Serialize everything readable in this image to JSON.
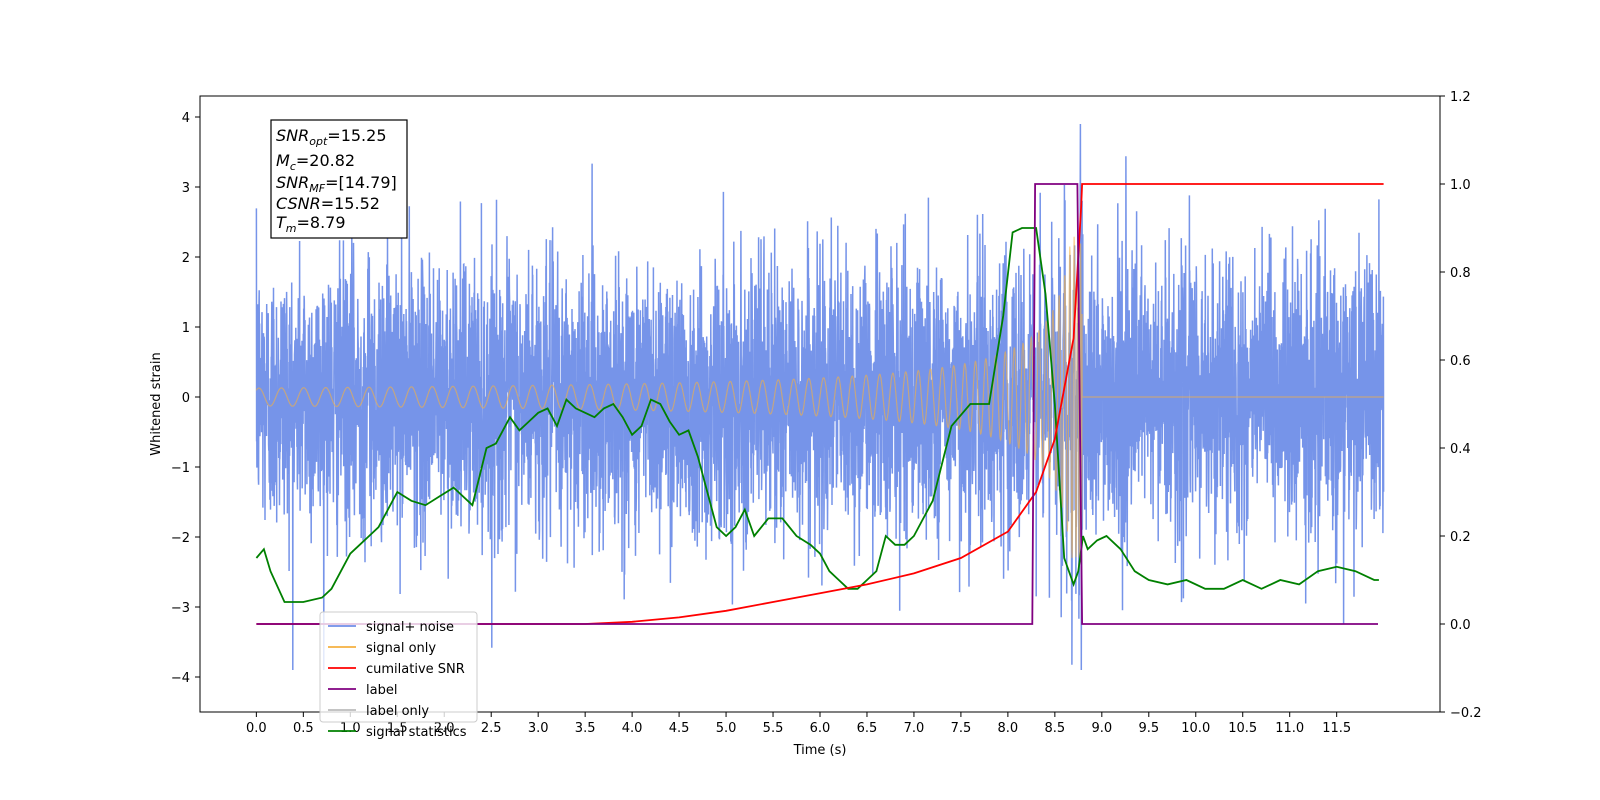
{
  "chart_data": {
    "type": "line",
    "xlabel": "Time (s)",
    "ylabel_left": "Whitened strain",
    "ylabel_right": "",
    "xlim": [
      -0.6,
      12.6
    ],
    "ylim_left": [
      -4.5,
      4.3
    ],
    "ylim_right": [
      -0.2,
      1.2
    ],
    "x_ticks": [
      "0.0",
      "0.5",
      "1.0",
      "1.5",
      "2.0",
      "2.5",
      "3.0",
      "3.5",
      "4.0",
      "4.5",
      "5.0",
      "5.5",
      "6.0",
      "6.5",
      "7.0",
      "7.5",
      "8.0",
      "8.5",
      "9.0",
      "9.5",
      "10.0",
      "10.5",
      "11.0",
      "11.5"
    ],
    "y_ticks_left": [
      "4",
      "3",
      "2",
      "1",
      "0",
      "−1",
      "−2",
      "−3",
      "−4"
    ],
    "y_ticks_right": [
      "1.2",
      "1.0",
      "0.8",
      "0.6",
      "0.4",
      "0.2",
      "0.0",
      "−0.2"
    ],
    "grid": false,
    "legend_position": "lower-left",
    "annotation": {
      "snr_opt": "=15.25",
      "mc": "=20.82",
      "snr_mf": "=[14.79]",
      "csnr": "=15.52",
      "tm": "=8.79"
    },
    "series": [
      {
        "name": "signal+ noise",
        "color": "#6f8ee8",
        "axis": "left",
        "description": "white noise, std ~1, peaks to about 3.9 near t=8.79",
        "x_range": [
          0.0,
          12.0
        ]
      },
      {
        "name": "signal only",
        "color": "#f5b041",
        "axis": "left",
        "description": "chirp waveform growing from 0 to amplitude ~2.3 at merger t=8.79",
        "x_range": [
          0.0,
          12.0
        ]
      },
      {
        "name": "cumilative SNR",
        "color": "#ff0000",
        "axis": "right",
        "x": [
          0.0,
          3.5,
          4.0,
          4.5,
          5.0,
          5.5,
          6.0,
          6.5,
          7.0,
          7.5,
          8.0,
          8.3,
          8.5,
          8.7,
          8.78,
          8.79,
          12.0
        ],
        "y": [
          0.0,
          0.0,
          0.005,
          0.015,
          0.03,
          0.05,
          0.07,
          0.09,
          0.115,
          0.15,
          0.21,
          0.3,
          0.42,
          0.65,
          0.95,
          1.0,
          1.0
        ]
      },
      {
        "name": "label",
        "color": "#800080",
        "axis": "right",
        "x": [
          0.0,
          8.26,
          8.29,
          8.74,
          8.79,
          11.94
        ],
        "y": [
          0.0,
          0.0,
          1.0,
          1.0,
          0.0,
          0.0
        ]
      },
      {
        "name": "label only",
        "color": "#bbbbbb",
        "axis": "right",
        "x": [],
        "y": []
      },
      {
        "name": "signal statistics",
        "color": "#008000",
        "axis": "right",
        "x": [
          0.0,
          0.08,
          0.15,
          0.3,
          0.5,
          0.7,
          0.8,
          0.9,
          1.0,
          1.1,
          1.2,
          1.3,
          1.5,
          1.65,
          1.8,
          1.95,
          2.1,
          2.3,
          2.45,
          2.55,
          2.7,
          2.8,
          2.9,
          3.0,
          3.1,
          3.2,
          3.3,
          3.4,
          3.5,
          3.6,
          3.7,
          3.8,
          3.9,
          4.0,
          4.1,
          4.2,
          4.3,
          4.4,
          4.5,
          4.6,
          4.7,
          4.8,
          4.9,
          5.0,
          5.1,
          5.2,
          5.3,
          5.45,
          5.6,
          5.75,
          5.9,
          6.0,
          6.1,
          6.2,
          6.3,
          6.4,
          6.5,
          6.6,
          6.7,
          6.8,
          6.9,
          7.0,
          7.2,
          7.4,
          7.6,
          7.8,
          7.95,
          8.05,
          8.15,
          8.3,
          8.4,
          8.5,
          8.6,
          8.7,
          8.75,
          8.8,
          8.85,
          8.95,
          9.05,
          9.2,
          9.35,
          9.5,
          9.7,
          9.9,
          10.1,
          10.3,
          10.5,
          10.7,
          10.9,
          11.1,
          11.3,
          11.5,
          11.7,
          11.9,
          11.95
        ],
        "y": [
          0.15,
          0.17,
          0.12,
          0.05,
          0.05,
          0.06,
          0.08,
          0.12,
          0.16,
          0.18,
          0.2,
          0.22,
          0.3,
          0.28,
          0.27,
          0.29,
          0.31,
          0.27,
          0.4,
          0.41,
          0.47,
          0.44,
          0.46,
          0.48,
          0.49,
          0.45,
          0.51,
          0.49,
          0.48,
          0.47,
          0.49,
          0.5,
          0.47,
          0.43,
          0.45,
          0.51,
          0.5,
          0.46,
          0.43,
          0.44,
          0.38,
          0.3,
          0.22,
          0.2,
          0.22,
          0.26,
          0.2,
          0.24,
          0.24,
          0.2,
          0.18,
          0.16,
          0.12,
          0.1,
          0.08,
          0.08,
          0.1,
          0.12,
          0.2,
          0.18,
          0.18,
          0.2,
          0.28,
          0.45,
          0.5,
          0.5,
          0.7,
          0.89,
          0.9,
          0.9,
          0.75,
          0.5,
          0.15,
          0.09,
          0.12,
          0.2,
          0.17,
          0.19,
          0.2,
          0.17,
          0.12,
          0.1,
          0.09,
          0.1,
          0.08,
          0.08,
          0.1,
          0.08,
          0.1,
          0.09,
          0.12,
          0.13,
          0.12,
          0.1,
          0.1
        ]
      }
    ]
  },
  "legend": [
    {
      "label": "signal+ noise",
      "color": "#6f8ee8"
    },
    {
      "label": "signal only",
      "color": "#f5b041"
    },
    {
      "label": "cumilative SNR",
      "color": "#ff0000"
    },
    {
      "label": "label",
      "color": "#800080"
    },
    {
      "label": "label only",
      "color": "#bbbbbb"
    },
    {
      "label": "signal statistics",
      "color": "#008000"
    }
  ]
}
